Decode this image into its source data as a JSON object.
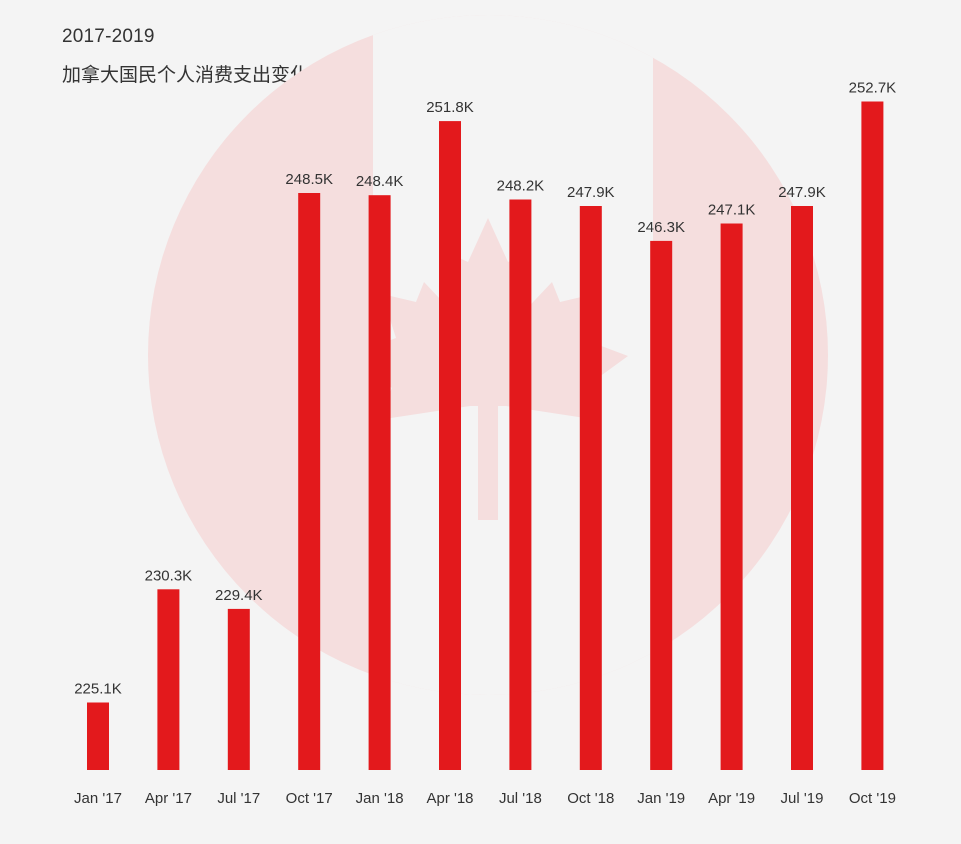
{
  "chart_data": {
    "type": "bar",
    "subtitle": "2017-2019",
    "title": "加拿大国民个人消费支出变化",
    "categories": [
      "Jan '17",
      "Apr '17",
      "Jul '17",
      "Oct '17",
      "Jan '18",
      "Apr '18",
      "Jul '18",
      "Oct '18",
      "Jan '19",
      "Apr '19",
      "Jul '19",
      "Oct '19"
    ],
    "values": [
      225.1,
      230.3,
      229.4,
      248.5,
      248.4,
      251.8,
      248.2,
      247.9,
      246.3,
      247.1,
      247.9,
      252.7
    ],
    "value_labels": [
      "225.1K",
      "230.3K",
      "229.4K",
      "248.5K",
      "248.4K",
      "251.8K",
      "248.2K",
      "247.9K",
      "246.3K",
      "247.1K",
      "247.9K",
      "252.7K"
    ],
    "xlabel": "",
    "ylabel": "",
    "ylim": [
      222,
      253
    ],
    "grid": false,
    "legend": "none",
    "bar_color": "#e3191c",
    "background_color": "#f4f4f4",
    "watermark_color": "#f5dede",
    "watermark_icon": "maple-leaf-icon"
  }
}
